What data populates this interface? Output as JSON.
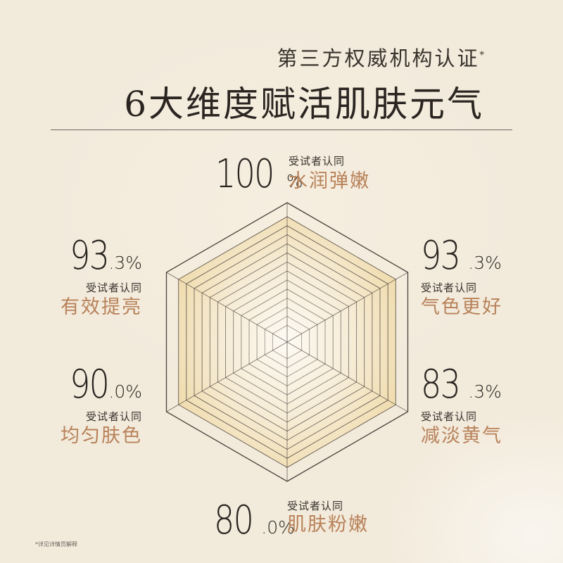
{
  "header": {
    "subtitle": "第三方权威机构认证",
    "subtitle_mark": "*",
    "title": "6大维度赋活肌肤元气"
  },
  "tag_text": "受试者认同",
  "colors": {
    "background": "#f2eadb",
    "accent_label": "#b8825a",
    "hex_stroke": "#4a423c",
    "fill_inner": "#fbf6ec",
    "fill_outer": "#f0dfb6"
  },
  "chart_data": {
    "type": "radar",
    "categories": [
      "水润弹嫩",
      "气色更好",
      "减淡黄气",
      "肌肤粉嫩",
      "均匀肤色",
      "有效提亮"
    ],
    "values": [
      100,
      93.3,
      83.3,
      80.0,
      90.0,
      93.3
    ],
    "unit": "%",
    "display": [
      {
        "id": "top",
        "int": "100",
        "dec": "%",
        "label": "水润弹嫩"
      },
      {
        "id": "ur",
        "int": "93",
        "dec": ".3%",
        "label": "气色更好"
      },
      {
        "id": "lr",
        "int": "83",
        "dec": ".3%",
        "label": "减淡黄气"
      },
      {
        "id": "bottom",
        "int": "80",
        "dec": ".0%",
        "label": "肌肤粉嫩"
      },
      {
        "id": "ll",
        "int": "90",
        "dec": ".0%",
        "label": "均匀肤色"
      },
      {
        "id": "ul",
        "int": "93",
        "dec": ".3%",
        "label": "有效提亮"
      }
    ],
    "range": [
      0,
      100
    ]
  },
  "footnote": "*详见详情页解释"
}
